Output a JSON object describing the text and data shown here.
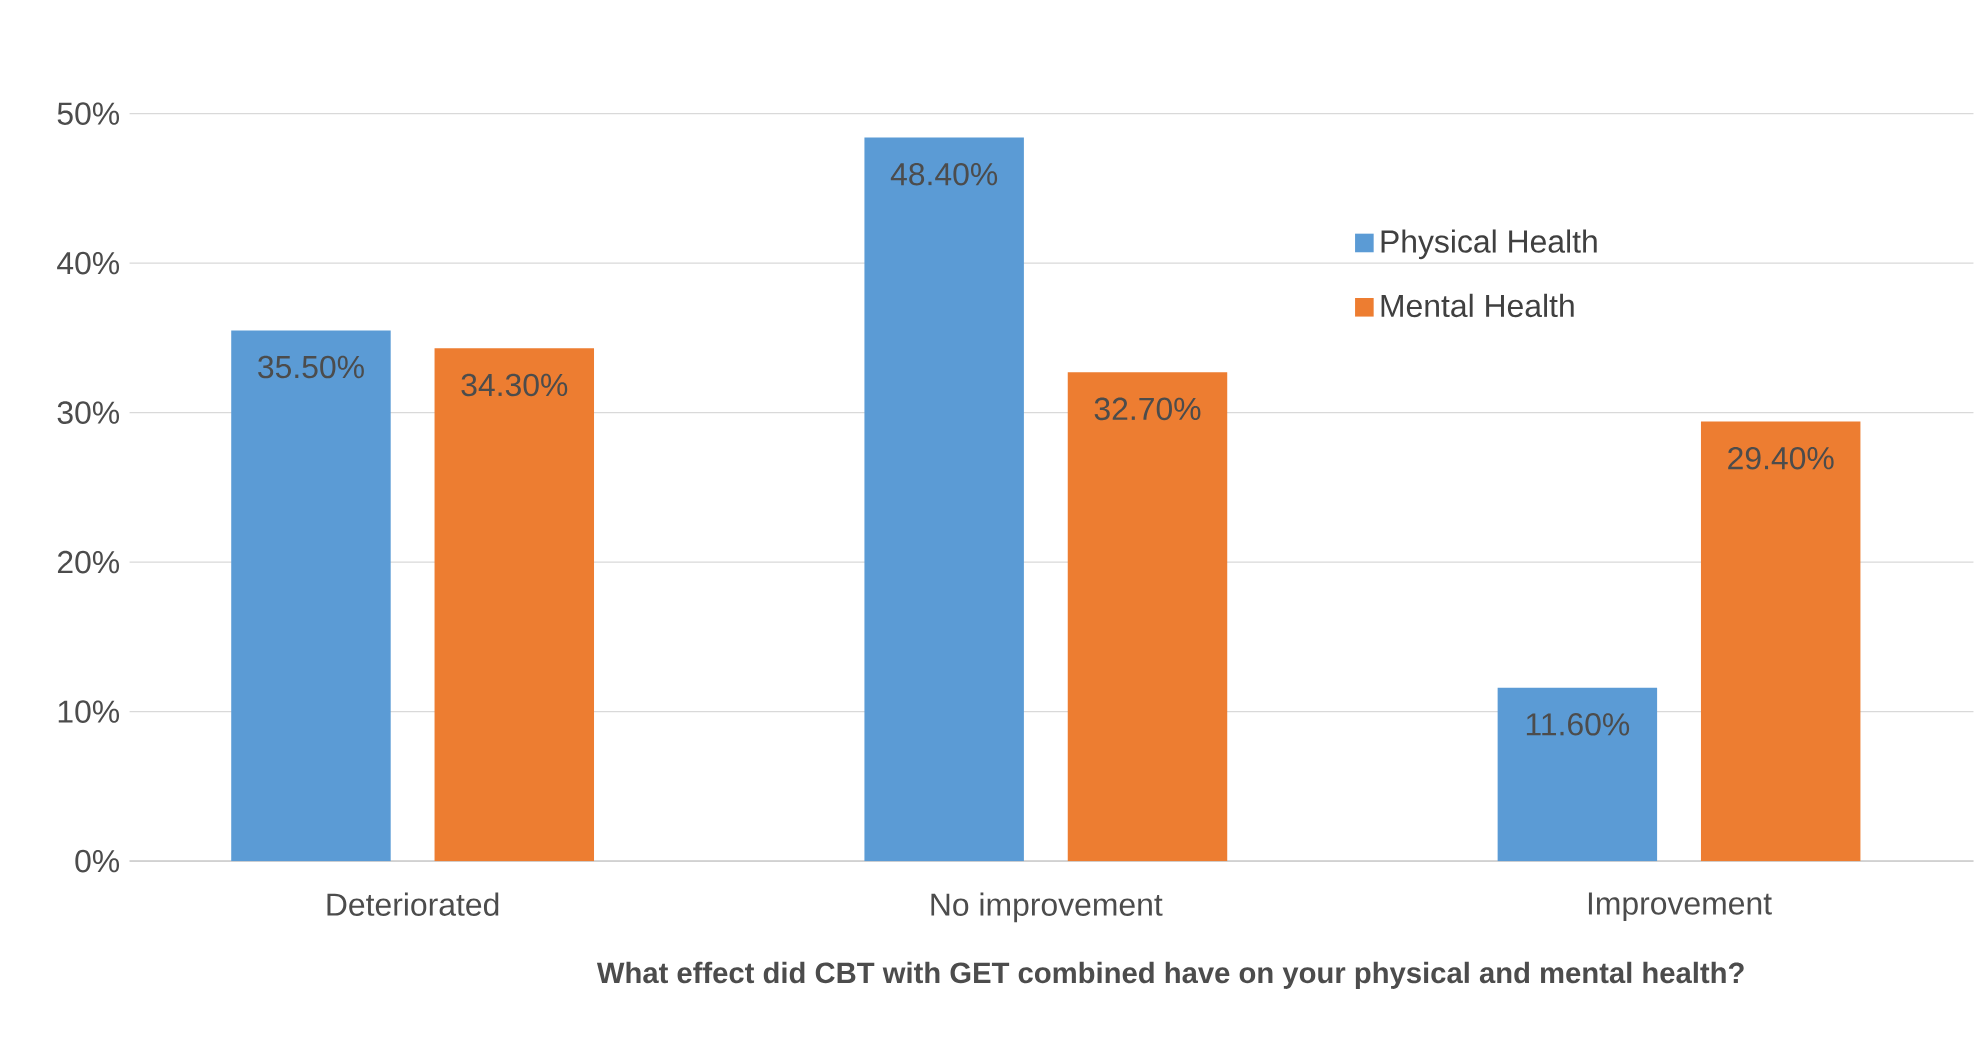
{
  "chart_data": {
    "type": "bar",
    "xlabel": "What effect did CBT with GET combined have on your physical and mental health?",
    "categories": [
      "Deteriorated",
      "No improvement",
      "Improvement"
    ],
    "series": [
      {
        "name": "Physical Health",
        "color": "#5b9bd5",
        "values": [
          35.5,
          48.4,
          11.6
        ],
        "value_labels": [
          "35.50%",
          "48.40%",
          "11.60%"
        ]
      },
      {
        "name": "Mental Health",
        "color": "#ed7d31",
        "values": [
          34.3,
          32.7,
          29.4
        ],
        "value_labels": [
          "34.30%",
          "32.70%",
          "29.40%"
        ]
      }
    ],
    "ylim": [
      0,
      50
    ],
    "yticks": [
      {
        "value": 0,
        "label": "0%"
      },
      {
        "value": 10,
        "label": "10%"
      },
      {
        "value": 20,
        "label": "20%"
      },
      {
        "value": 30,
        "label": "30%"
      },
      {
        "value": 40,
        "label": "40%"
      },
      {
        "value": 50,
        "label": "50%"
      }
    ],
    "grid": "y",
    "legend": "top right"
  }
}
